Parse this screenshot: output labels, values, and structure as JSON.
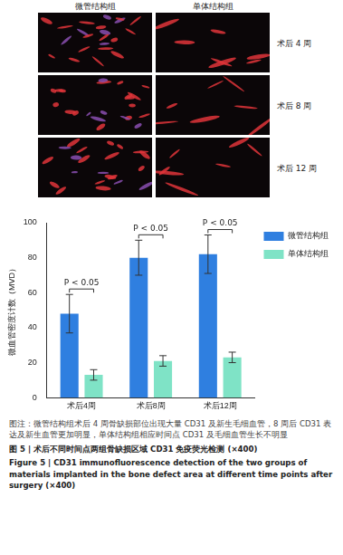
{
  "panels": {
    "columns": [
      "微管结构组",
      "单体结构组"
    ],
    "rows": [
      "术后 4 周",
      "术后 8 周",
      "术后 12 周"
    ]
  },
  "chart_data": {
    "type": "bar",
    "y_label": "微血管密度计数（MVD）",
    "categories": [
      "术后4周",
      "术后8周",
      "术后12周"
    ],
    "series": [
      {
        "name": "微管结构组",
        "color": "#2f7fe0",
        "values": [
          48,
          80,
          82
        ],
        "errors": [
          11,
          10,
          11
        ]
      },
      {
        "name": "单体结构组",
        "color": "#7fe3c6",
        "values": [
          13,
          21,
          23
        ],
        "errors": [
          3,
          3,
          3
        ]
      }
    ],
    "ylim": [
      0,
      100
    ],
    "yticks": [
      0,
      20,
      40,
      60,
      80,
      100
    ],
    "grid": false,
    "legend": "right",
    "annotations": [
      {
        "category": "术后4周",
        "text": "P < 0.05"
      },
      {
        "category": "术后8周",
        "text": "P < 0.05"
      },
      {
        "category": "术后12周",
        "text": "P < 0.05"
      }
    ]
  },
  "caption": {
    "note": "图注：微管结构组术后 4 周骨缺损部位出现大量 CD31 及新生毛细血管，8 周后 CD31 表达及新生血管更加明显，单体结构组相应时间点 CD31 及毛细血管生长不明显",
    "title_cn": "图 5 | 术后不同时间点两组骨缺损区域 CD31 免疫荧光检测 (×400)",
    "title_en": "Figure 5 | CD31 immunofluorescence detection of the two groups of materials implanted in the bone defect area at different time points after surgery (×400)"
  }
}
